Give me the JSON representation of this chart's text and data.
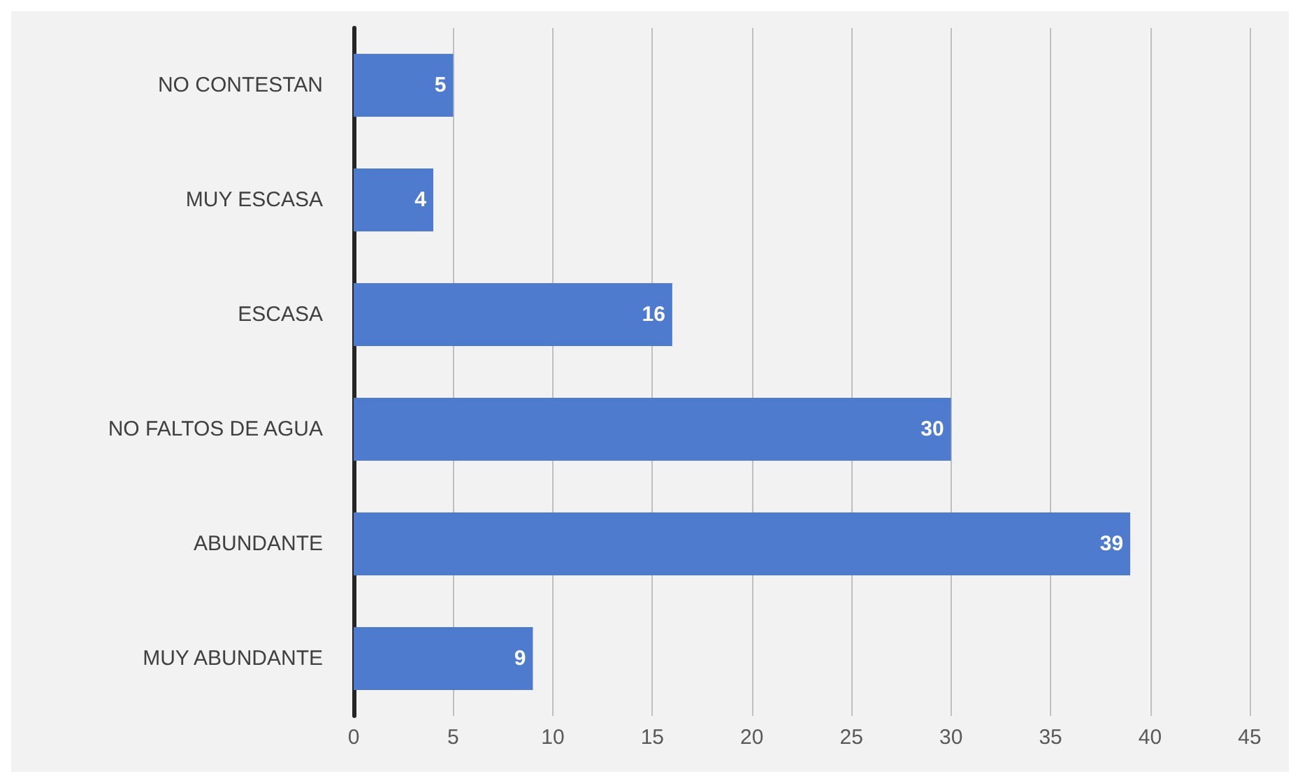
{
  "chart_data": {
    "type": "bar",
    "orientation": "horizontal",
    "categories": [
      "NO CONTESTAN",
      "MUY ESCASA",
      "ESCASA",
      "NO FALTOS DE AGUA",
      "ABUNDANTE",
      "MUY ABUNDANTE"
    ],
    "values": [
      5,
      4,
      16,
      30,
      39,
      9
    ],
    "color": "#4f7bcf",
    "xlim": [
      0,
      45
    ],
    "xticks": [
      0,
      5,
      10,
      15,
      20,
      25,
      30,
      35,
      40,
      45
    ],
    "grid": "x",
    "data_labels": true
  }
}
